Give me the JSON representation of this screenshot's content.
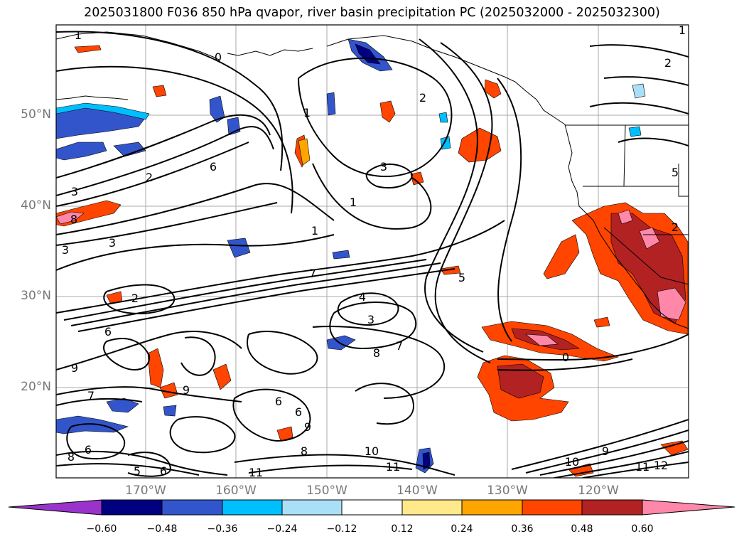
{
  "title": "2025031800 F036 850 hPa qvapor, river basin precipitation PC (2025032000 - 2025032300)",
  "lat_labels": [
    "50°N",
    "40°N",
    "30°N",
    "20°N"
  ],
  "lon_labels": [
    "170°W",
    "160°W",
    "150°W",
    "140°W",
    "130°W",
    "120°W"
  ],
  "colorbar": {
    "tick_labels": [
      "−0.60",
      "−0.48",
      "−0.36",
      "−0.24",
      "−0.12",
      "0.12",
      "0.24",
      "0.36",
      "0.48",
      "0.60"
    ],
    "colors": [
      "#9933cc",
      "#000080",
      "#3355cc",
      "#00bfff",
      "#aadff8",
      "#ffffff",
      "#ffe98a",
      "#ffa500",
      "#ff4500",
      "#b22222",
      "#ff88aa"
    ],
    "extend": "both"
  },
  "contour_labels": [
    "1",
    "0",
    "2",
    "1",
    "2",
    "3",
    "6",
    "3",
    "1",
    "8",
    "3",
    "3",
    "1",
    "7",
    "5",
    "2",
    "6",
    "4",
    "3",
    "8",
    "7",
    "9",
    "7",
    "9",
    "6",
    "8",
    "10",
    "11",
    "9",
    "11",
    "6",
    "6",
    "8",
    "5",
    "6",
    "9",
    "10",
    "12",
    "11",
    "5",
    "0",
    "2",
    "1",
    "2"
  ],
  "shading_colors": {
    "pink": "#ff88aa",
    "dark_red": "#b22222",
    "red_orange": "#ff4500",
    "orange": "#ffa500",
    "yellow": "#ffe98a",
    "light_blue": "#aadff8",
    "cyan": "#00bfff",
    "blue": "#3355cc",
    "navy": "#000080"
  }
}
